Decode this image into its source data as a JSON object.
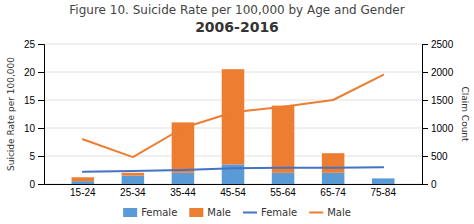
{
  "chart_data": {
    "type": "bar",
    "title": "Figure 10. Suicide Rate per 100,000 by Age and Gender",
    "subtitle": "2006-2016",
    "categories": [
      "15-24",
      "25-34",
      "35-44",
      "45-54",
      "55-64",
      "65-74",
      "75-84"
    ],
    "stacked": true,
    "grid": true,
    "legend": "bottom",
    "ylabel": "Suicide Rate per 100,000",
    "y2label": "Claim Count",
    "ylim": [
      0,
      25
    ],
    "yticks": [
      0,
      5,
      10,
      15,
      20,
      25
    ],
    "y2lim": [
      0,
      2500
    ],
    "y2ticks": [
      0,
      500,
      1000,
      1500,
      2000,
      2500
    ],
    "series": [
      {
        "name": "Female",
        "type": "bar",
        "color": "#5B9BD5",
        "values": [
          0.5,
          1.5,
          2.0,
          3.5,
          2.0,
          2.0,
          1.0
        ]
      },
      {
        "name": "Male",
        "type": "bar",
        "color": "#ED7D31",
        "values": [
          0.7,
          0.5,
          9.0,
          17.0,
          12.0,
          3.5,
          0.0
        ]
      },
      {
        "name": "Female",
        "type": "line",
        "color": "#4472C4",
        "values": [
          2.2,
          2.3,
          2.5,
          2.8,
          2.9,
          2.9,
          3.0
        ]
      },
      {
        "name": "Male",
        "type": "line",
        "color": "#ED7D31",
        "axis": "y2",
        "values": [
          800,
          480,
          1000,
          1280,
          1380,
          1500,
          1950
        ]
      }
    ]
  }
}
